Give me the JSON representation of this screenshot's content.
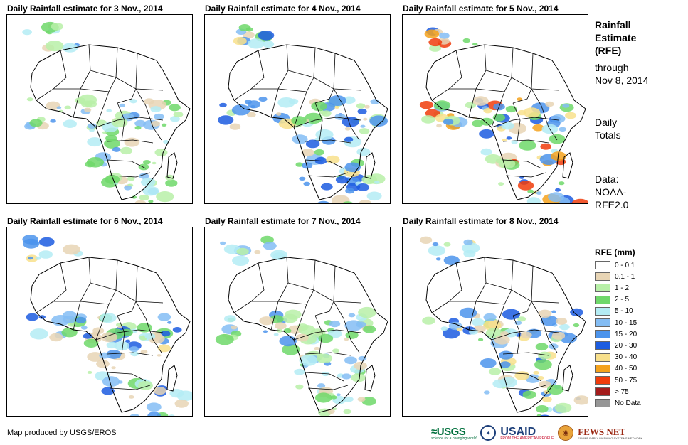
{
  "panels": [
    {
      "title": "Daily Rainfall estimate for 3 Nov., 2014",
      "intensity": 1
    },
    {
      "title": "Daily Rainfall estimate for 4 Nov., 2014",
      "intensity": 2
    },
    {
      "title": "Daily Rainfall estimate for 5 Nov., 2014",
      "intensity": 3
    },
    {
      "title": "Daily Rainfall estimate for 6 Nov., 2014",
      "intensity": 2
    },
    {
      "title": "Daily Rainfall estimate for 7 Nov., 2014",
      "intensity": 1
    },
    {
      "title": "Daily Rainfall estimate for 8 Nov., 2014",
      "intensity": 2
    }
  ],
  "sidebar": {
    "heading_1": "Rainfall",
    "heading_2": "Estimate",
    "heading_3": "(RFE)",
    "through_1": "through",
    "through_2": "Nov 8, 2014",
    "totals_1": "Daily",
    "totals_2": "Totals",
    "data_1": "Data:",
    "data_2": "NOAA-",
    "data_3": "RFE2.0"
  },
  "legend": {
    "title": "RFE (mm)",
    "items": [
      {
        "label": "0 - 0.1",
        "color": "#ffffff"
      },
      {
        "label": "0.1 - 1",
        "color": "#e8d5b5"
      },
      {
        "label": "1 - 2",
        "color": "#b8f0a8"
      },
      {
        "label": "2 - 5",
        "color": "#6fd86a"
      },
      {
        "label": "5 - 10",
        "color": "#b4ecf4"
      },
      {
        "label": "10 - 15",
        "color": "#84bdf4"
      },
      {
        "label": "15 - 20",
        "color": "#4c94ec"
      },
      {
        "label": "20 - 30",
        "color": "#1c5ce0"
      },
      {
        "label": "30 - 40",
        "color": "#f8e08c"
      },
      {
        "label": "40 - 50",
        "color": "#f4a21c"
      },
      {
        "label": "50 - 75",
        "color": "#f03c0c"
      },
      {
        "label": "> 75",
        "color": "#a41c1c"
      },
      {
        "label": "No Data",
        "color": "#969696"
      }
    ]
  },
  "credit": "Map produced by USGS/EROS",
  "logos": {
    "usgs": "≈USGS",
    "usgs_tag": "science for a changing world",
    "usaid": "USAID",
    "usaid_tag": "FROM THE AMERICAN PEOPLE",
    "fews": "FEWS NET",
    "fews_tag": "FAMINE EARLY WARNING SYSTEMS NETWORK"
  }
}
